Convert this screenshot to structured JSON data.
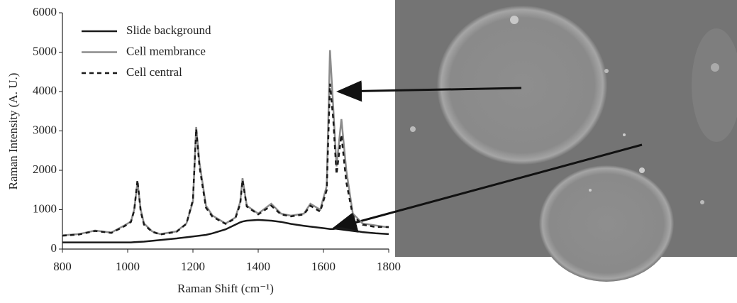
{
  "chart_data": {
    "type": "line",
    "x_label": "Raman Shift (cm⁻¹)",
    "y_label": "Raman Intensity (A. U.)",
    "x": [
      800,
      850,
      900,
      950,
      990,
      1010,
      1020,
      1030,
      1040,
      1050,
      1075,
      1100,
      1150,
      1180,
      1200,
      1210,
      1220,
      1240,
      1260,
      1300,
      1330,
      1345,
      1352,
      1365,
      1400,
      1440,
      1470,
      1500,
      1540,
      1560,
      1590,
      1610,
      1620,
      1630,
      1640,
      1655,
      1670,
      1690,
      1720,
      1760,
      1800
    ],
    "series": [
      {
        "name": "Slide background",
        "color": "#1a1a1a",
        "dash": "solid",
        "values": [
          170,
          170,
          170,
          170,
          170,
          170,
          175,
          180,
          185,
          190,
          210,
          230,
          270,
          300,
          320,
          330,
          340,
          360,
          400,
          500,
          620,
          680,
          700,
          720,
          740,
          720,
          690,
          640,
          590,
          570,
          540,
          520,
          510,
          510,
          520,
          530,
          510,
          470,
          430,
          400,
          380
        ]
      },
      {
        "name": "Cell membrance",
        "color": "#8c8c8c",
        "dash": "solid",
        "values": [
          350,
          380,
          470,
          420,
          600,
          700,
          1000,
          1700,
          1000,
          650,
          450,
          380,
          450,
          650,
          1200,
          3100,
          2200,
          1100,
          850,
          650,
          800,
          1200,
          1800,
          1100,
          900,
          1150,
          900,
          850,
          900,
          1150,
          1000,
          1600,
          5050,
          3600,
          2100,
          3300,
          2000,
          900,
          650,
          600,
          550
        ]
      },
      {
        "name": "Cell central",
        "color": "#1a1a1a",
        "dash": "dashed",
        "values": [
          340,
          370,
          460,
          410,
          580,
          690,
          980,
          1750,
          950,
          620,
          440,
          370,
          440,
          640,
          1250,
          3050,
          2100,
          1050,
          820,
          640,
          780,
          1150,
          1750,
          1080,
          880,
          1100,
          880,
          830,
          880,
          1100,
          950,
          1500,
          4200,
          3300,
          1900,
          2900,
          1700,
          850,
          620,
          560,
          560
        ]
      }
    ],
    "xlim": [
      800,
      1800
    ],
    "xticks": [
      800,
      1000,
      1200,
      1400,
      1600,
      1800
    ],
    "ylim": [
      0,
      6000
    ],
    "yticks": [
      0,
      1000,
      2000,
      3000,
      4000,
      5000,
      6000
    ],
    "legend": "upper left",
    "grid": false
  }
}
